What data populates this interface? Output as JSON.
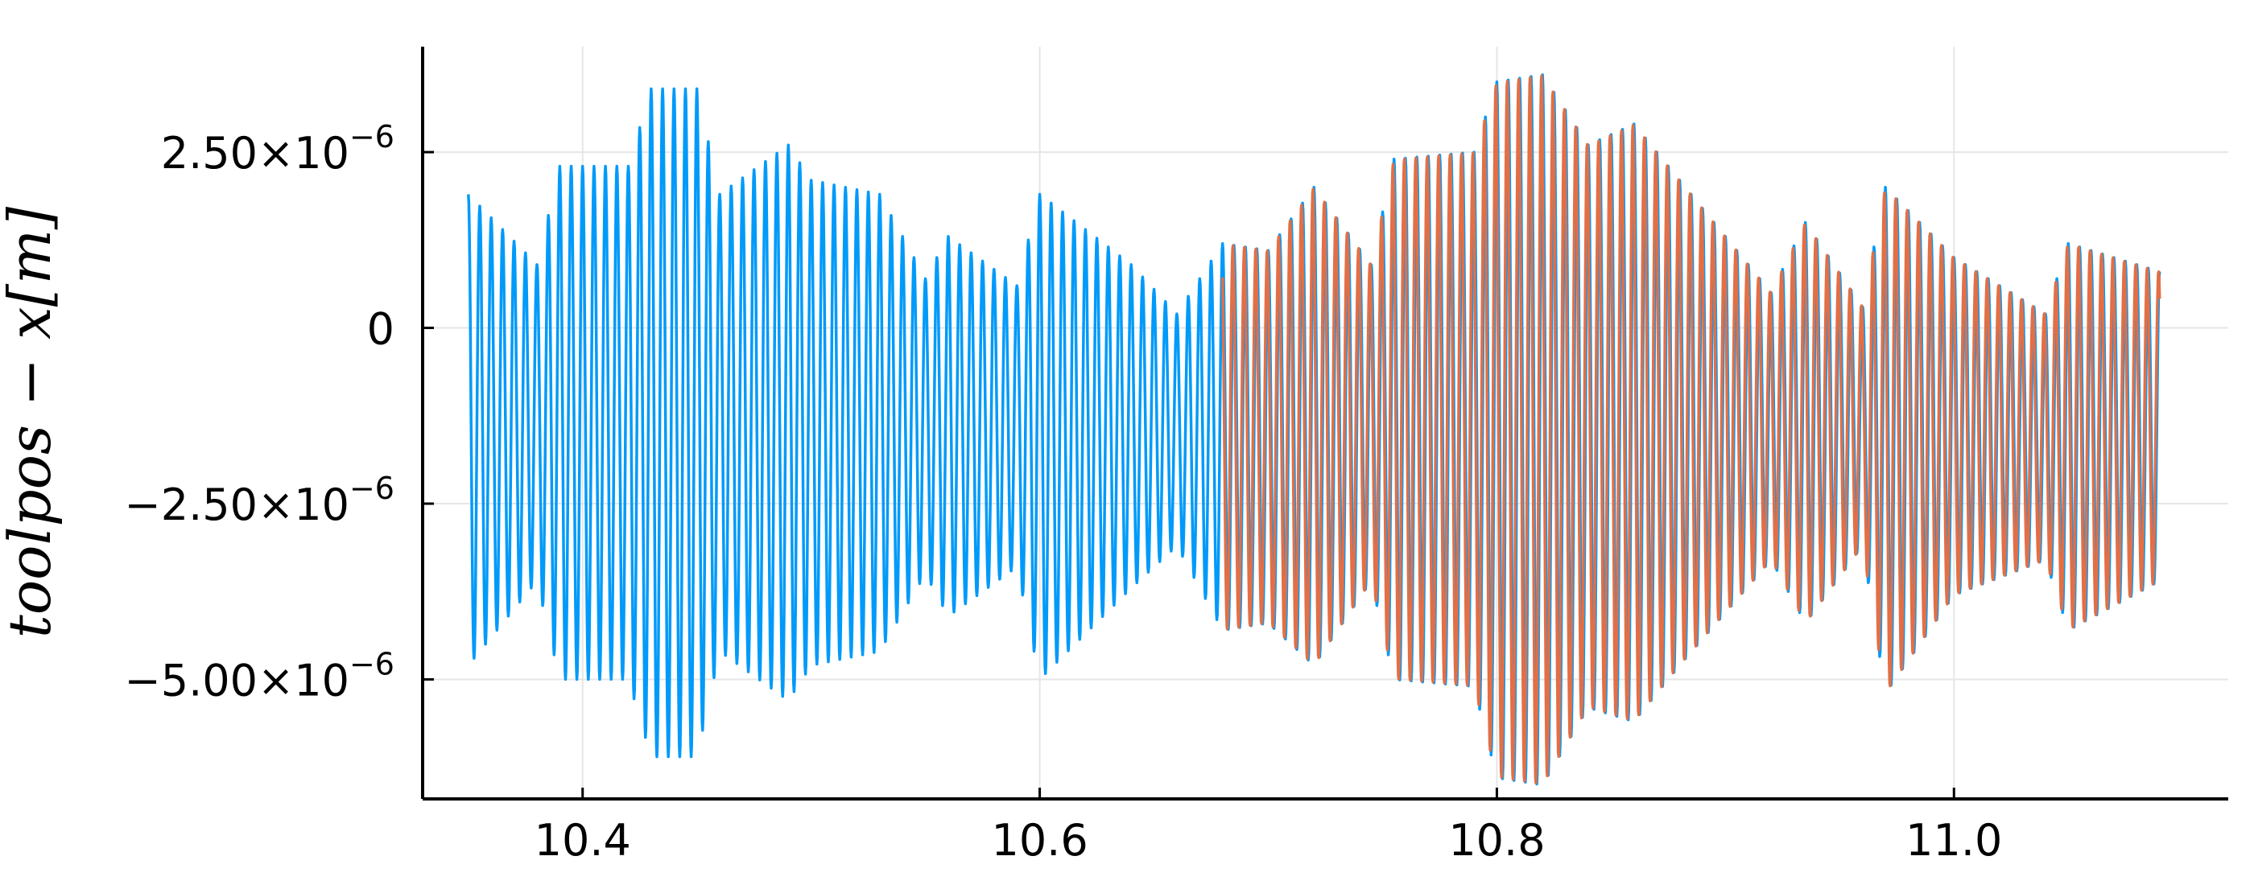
{
  "chart_data": {
    "type": "line",
    "title": "",
    "xlabel": "",
    "ylabel": "toolpos − x[m]",
    "xlim": [
      10.33,
      11.12
    ],
    "ylim": [
      -6.7e-06,
      4e-06
    ],
    "grid": true,
    "legend": "none",
    "x_ticks": [
      {
        "value": 10.4,
        "label": "10.4"
      },
      {
        "value": 10.6,
        "label": "10.6"
      },
      {
        "value": 10.8,
        "label": "10.8"
      },
      {
        "value": 11.0,
        "label": "11.0"
      }
    ],
    "y_ticks": [
      {
        "value": 2.5e-06,
        "mantissa": "2.50×10",
        "exponent": "−6"
      },
      {
        "value": 0,
        "mantissa": "0",
        "exponent": ""
      },
      {
        "value": -2.5e-06,
        "mantissa": "−2.50×10",
        "exponent": "−6"
      },
      {
        "value": -5e-06,
        "mantissa": "−5.00×10",
        "exponent": "−6"
      }
    ],
    "series": [
      {
        "color": "#009af9",
        "x_range": [
          10.35,
          11.09
        ],
        "oscillation_period": 0.005,
        "envelope": [
          {
            "x": 10.35,
            "max": 1.9e-06,
            "min": -4.8e-06
          },
          {
            "x": 10.38,
            "max": 9e-07,
            "min": -3.6e-06
          },
          {
            "x": 10.39,
            "max": 2.3e-06,
            "min": -5e-06
          },
          {
            "x": 10.42,
            "max": 2.3e-06,
            "min": -5e-06
          },
          {
            "x": 10.43,
            "max": 3.4e-06,
            "min": -6.1e-06
          },
          {
            "x": 10.45,
            "max": 3.4e-06,
            "min": -6.1e-06
          },
          {
            "x": 10.46,
            "max": 1.9e-06,
            "min": -4.6e-06
          },
          {
            "x": 10.49,
            "max": 2.6e-06,
            "min": -5.3e-06
          },
          {
            "x": 10.5,
            "max": 2.1e-06,
            "min": -4.8e-06
          },
          {
            "x": 10.53,
            "max": 1.9e-06,
            "min": -4.6e-06
          },
          {
            "x": 10.55,
            "max": 7e-07,
            "min": -3.5e-06
          },
          {
            "x": 10.56,
            "max": 1.3e-06,
            "min": -4.1e-06
          },
          {
            "x": 10.59,
            "max": 6e-07,
            "min": -3.4e-06
          },
          {
            "x": 10.6,
            "max": 1.9e-06,
            "min": -5e-06
          },
          {
            "x": 10.64,
            "max": 9e-07,
            "min": -3.7e-06
          },
          {
            "x": 10.66,
            "max": 2e-07,
            "min": -3.1e-06
          },
          {
            "x": 10.68,
            "max": 1.2e-06,
            "min": -4.3e-06
          },
          {
            "x": 10.7,
            "max": 1.1e-06,
            "min": -4.2e-06
          },
          {
            "x": 10.72,
            "max": 2e-06,
            "min": -4.8e-06
          },
          {
            "x": 10.745,
            "max": 9e-07,
            "min": -3.6e-06
          },
          {
            "x": 10.755,
            "max": 2.4e-06,
            "min": -5e-06
          },
          {
            "x": 10.79,
            "max": 2.5e-06,
            "min": -5.1e-06
          },
          {
            "x": 10.8,
            "max": 3.5e-06,
            "min": -6.4e-06
          },
          {
            "x": 10.82,
            "max": 3.6e-06,
            "min": -6.5e-06
          },
          {
            "x": 10.84,
            "max": 2.6e-06,
            "min": -5.4e-06
          },
          {
            "x": 10.86,
            "max": 2.9e-06,
            "min": -5.6e-06
          },
          {
            "x": 10.88,
            "max": 2.1e-06,
            "min": -4.8e-06
          },
          {
            "x": 10.92,
            "max": 5e-07,
            "min": -3.3e-06
          },
          {
            "x": 10.935,
            "max": 1.5e-06,
            "min": -4.2e-06
          },
          {
            "x": 10.96,
            "max": 3e-07,
            "min": -3.1e-06
          },
          {
            "x": 10.97,
            "max": 2e-06,
            "min": -5.2e-06
          },
          {
            "x": 11.0,
            "max": 1e-06,
            "min": -3.8e-06
          },
          {
            "x": 11.04,
            "max": 2e-07,
            "min": -3.3e-06
          },
          {
            "x": 11.05,
            "max": 1.2e-06,
            "min": -4.3e-06
          },
          {
            "x": 11.09,
            "max": 8e-07,
            "min": -3.6e-06
          }
        ]
      },
      {
        "color": "#e26f46",
        "x_range": [
          10.68,
          11.09
        ],
        "oscillation_period": 0.005,
        "envelope": [
          {
            "x": 10.68,
            "max": 1.2e-06,
            "min": -4.3e-06
          },
          {
            "x": 10.7,
            "max": 1.1e-06,
            "min": -4.2e-06
          },
          {
            "x": 10.72,
            "max": 2e-06,
            "min": -4.8e-06
          },
          {
            "x": 10.745,
            "max": 9e-07,
            "min": -3.6e-06
          },
          {
            "x": 10.755,
            "max": 2.4e-06,
            "min": -5e-06
          },
          {
            "x": 10.79,
            "max": 2.5e-06,
            "min": -5.1e-06
          },
          {
            "x": 10.8,
            "max": 3.5e-06,
            "min": -6.4e-06
          },
          {
            "x": 10.82,
            "max": 3.6e-06,
            "min": -6.5e-06
          },
          {
            "x": 10.84,
            "max": 2.6e-06,
            "min": -5.4e-06
          },
          {
            "x": 10.86,
            "max": 2.9e-06,
            "min": -5.6e-06
          },
          {
            "x": 10.88,
            "max": 2.1e-06,
            "min": -4.8e-06
          },
          {
            "x": 10.92,
            "max": 5e-07,
            "min": -3.3e-06
          },
          {
            "x": 10.935,
            "max": 1.5e-06,
            "min": -4.2e-06
          },
          {
            "x": 10.96,
            "max": 3e-07,
            "min": -3.1e-06
          },
          {
            "x": 10.97,
            "max": 2e-06,
            "min": -5.2e-06
          },
          {
            "x": 11.0,
            "max": 1e-06,
            "min": -3.8e-06
          },
          {
            "x": 11.04,
            "max": 2e-07,
            "min": -3.3e-06
          },
          {
            "x": 11.05,
            "max": 1.2e-06,
            "min": -4.3e-06
          },
          {
            "x": 11.09,
            "max": 8e-07,
            "min": -3.6e-06
          }
        ]
      }
    ]
  }
}
